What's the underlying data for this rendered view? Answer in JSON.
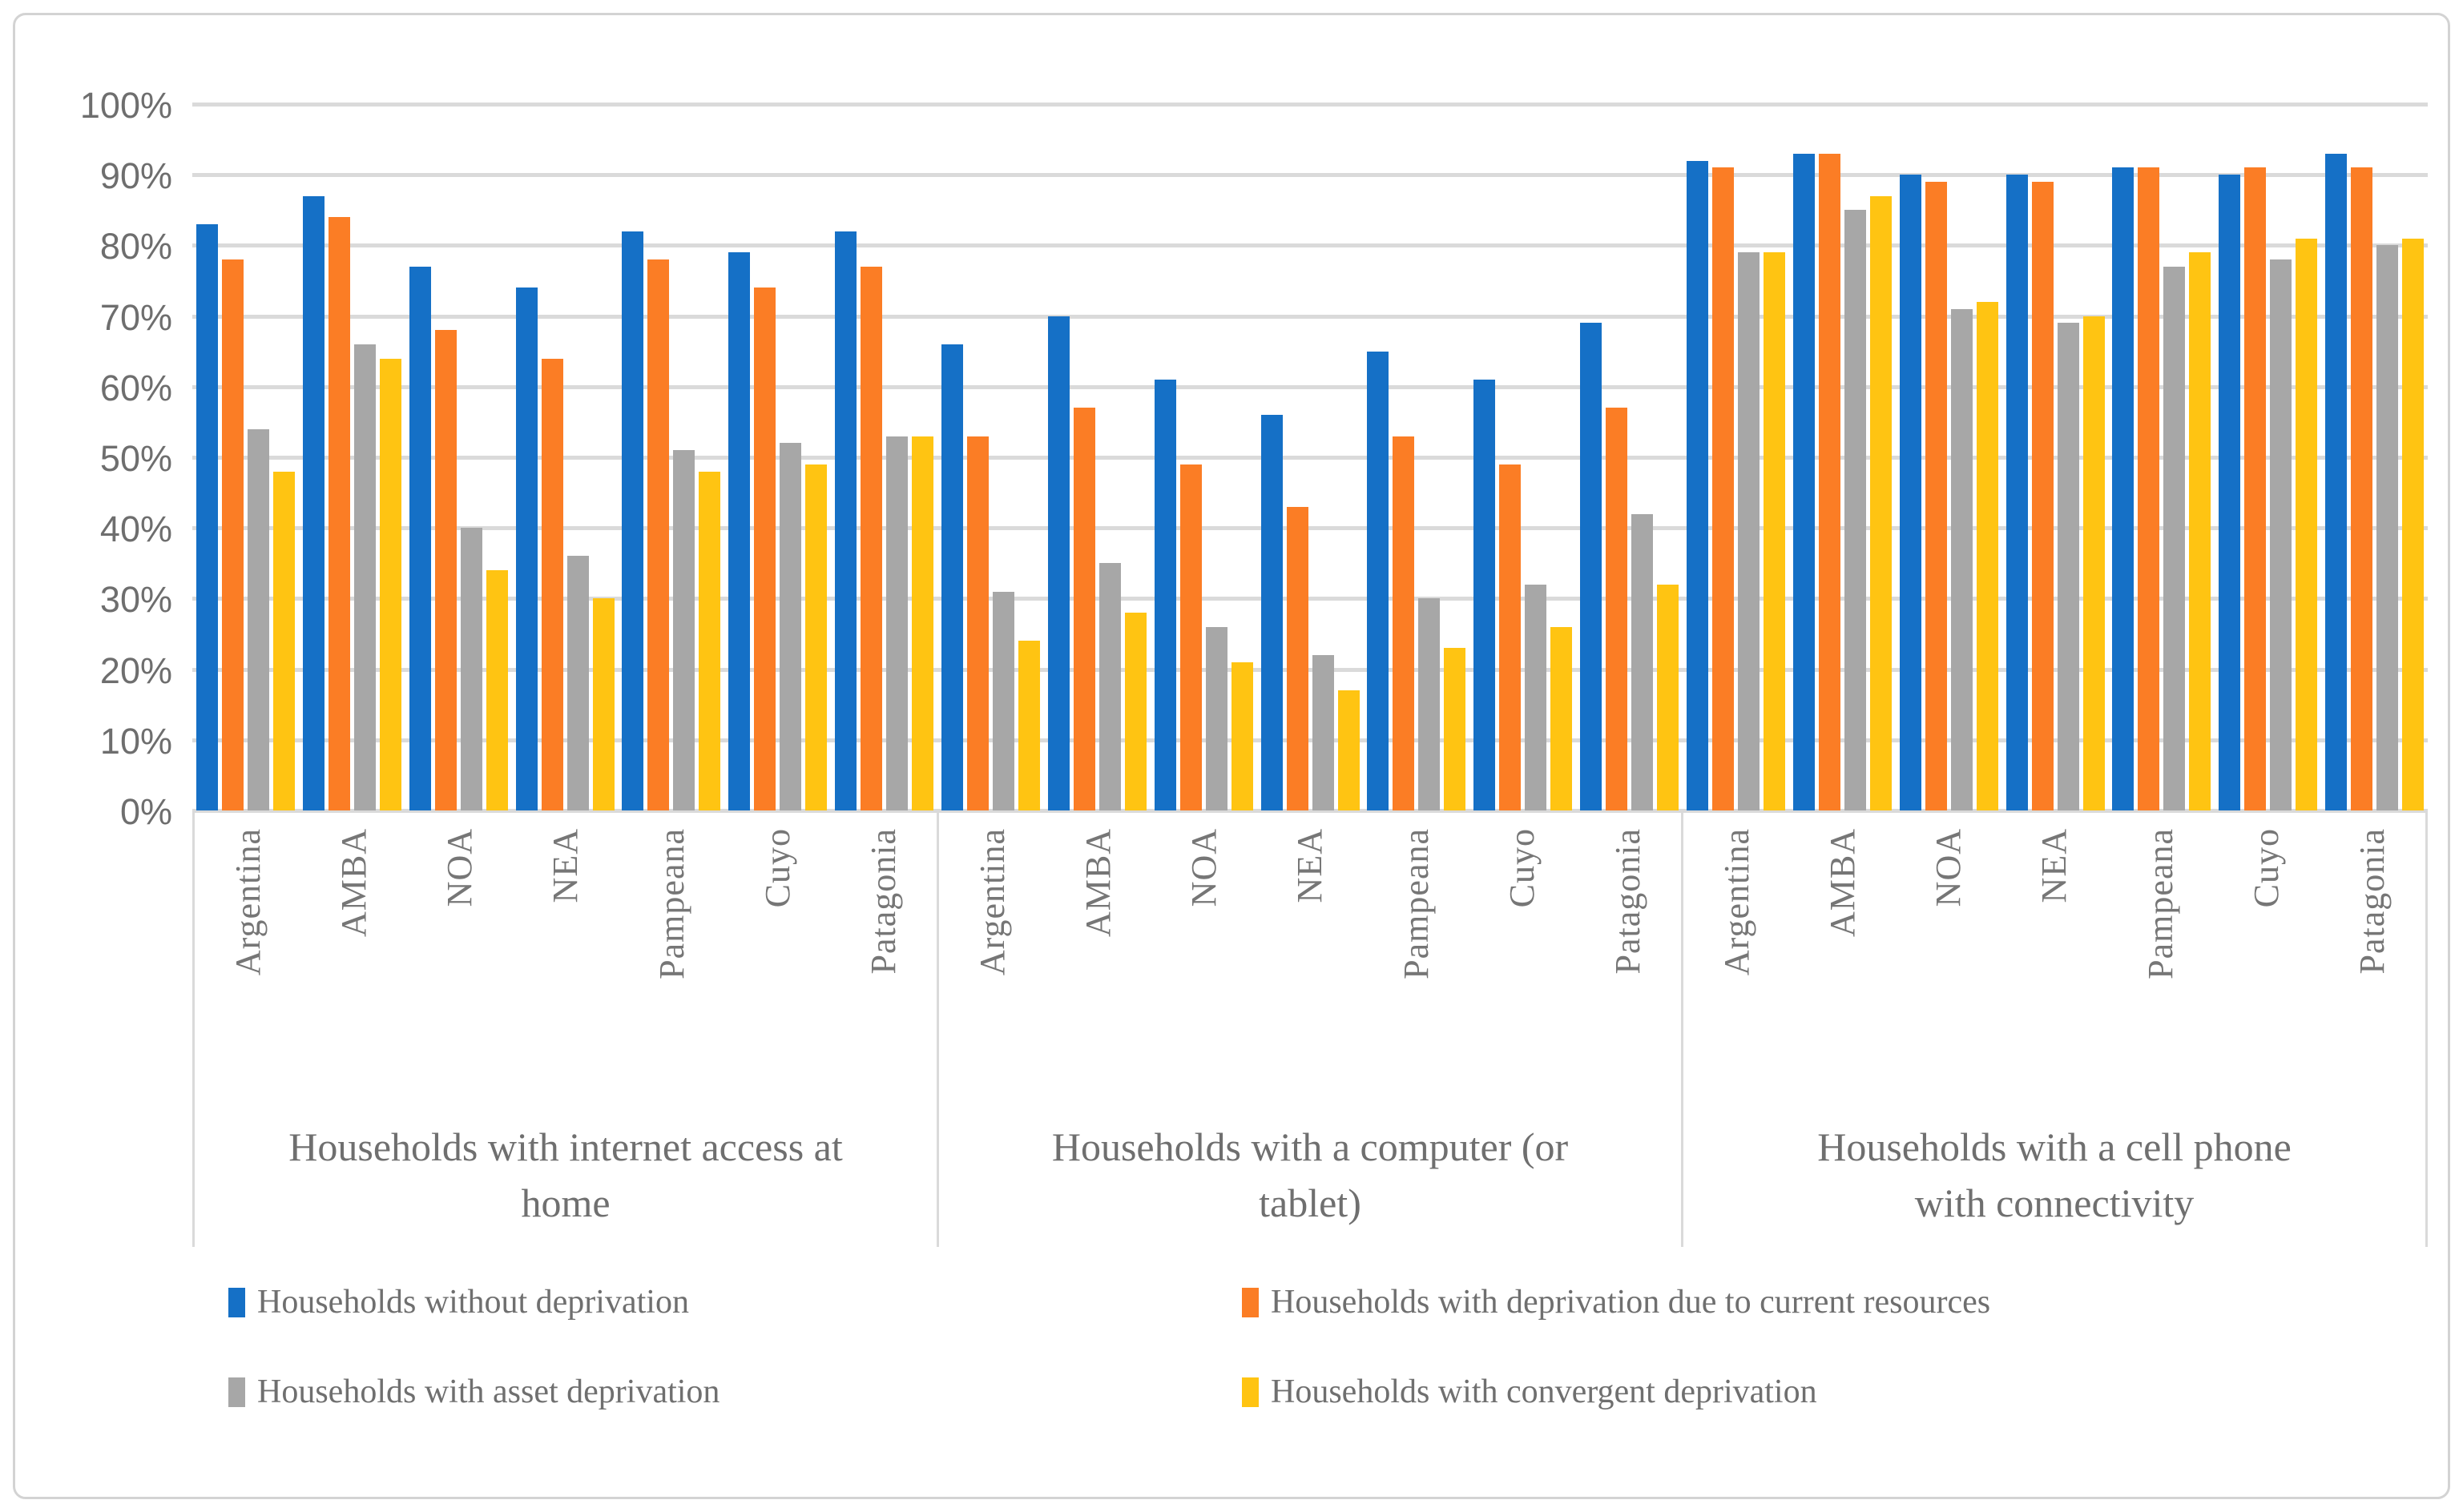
{
  "chart_data": {
    "type": "bar",
    "title": "",
    "xlabel": "",
    "ylabel": "",
    "ylim": [
      0,
      100
    ],
    "grid": true,
    "legend_position": "bottom",
    "y_ticks": [
      "100%",
      "90%",
      "80%",
      "70%",
      "60%",
      "50%",
      "40%",
      "30%",
      "20%",
      "10%",
      "0%"
    ],
    "categories": [
      "Argentina",
      "AMBA",
      "NOA",
      "NEA",
      "Pampeana",
      "Cuyo",
      "Patagonia"
    ],
    "panels": [
      {
        "title": "Households with internet access at home",
        "title_lines": [
          "Households with internet access at",
          "home"
        ]
      },
      {
        "title": "Households with a computer (or tablet)",
        "title_lines": [
          "Households with a computer (or",
          "tablet)"
        ]
      },
      {
        "title": "Households with a cell phone with connectivity",
        "title_lines": [
          "Households with a cell phone",
          "with connectivity"
        ]
      }
    ],
    "series": [
      {
        "name": "Households without deprivation",
        "color": "#1570C6",
        "values": [
          [
            83,
            87,
            77,
            74,
            82,
            79,
            82
          ],
          [
            66,
            70,
            61,
            56,
            65,
            61,
            69
          ],
          [
            92,
            93,
            90,
            90,
            91,
            90,
            93
          ]
        ]
      },
      {
        "name": "Households with deprivation due to current resources",
        "color": "#FB7D25",
        "values": [
          [
            78,
            84,
            68,
            64,
            78,
            74,
            77
          ],
          [
            53,
            57,
            49,
            43,
            53,
            49,
            57
          ],
          [
            91,
            93,
            89,
            89,
            91,
            91,
            91
          ]
        ]
      },
      {
        "name": "Households with asset deprivation",
        "color": "#A7A7A7",
        "values": [
          [
            54,
            66,
            40,
            36,
            51,
            52,
            53
          ],
          [
            31,
            35,
            26,
            22,
            30,
            32,
            42
          ],
          [
            79,
            85,
            71,
            69,
            77,
            78,
            80
          ]
        ]
      },
      {
        "name": "Households with convergent deprivation",
        "color": "#FFC412",
        "values": [
          [
            48,
            64,
            34,
            30,
            48,
            49,
            53
          ],
          [
            24,
            28,
            21,
            17,
            23,
            26,
            32
          ],
          [
            79,
            87,
            72,
            70,
            79,
            81,
            81
          ]
        ]
      }
    ],
    "colors": {
      "gridline": "#DADADA",
      "axis_text": "#6E6E6E",
      "label_text": "#767676",
      "frame_border": "#D3D3D3"
    }
  }
}
